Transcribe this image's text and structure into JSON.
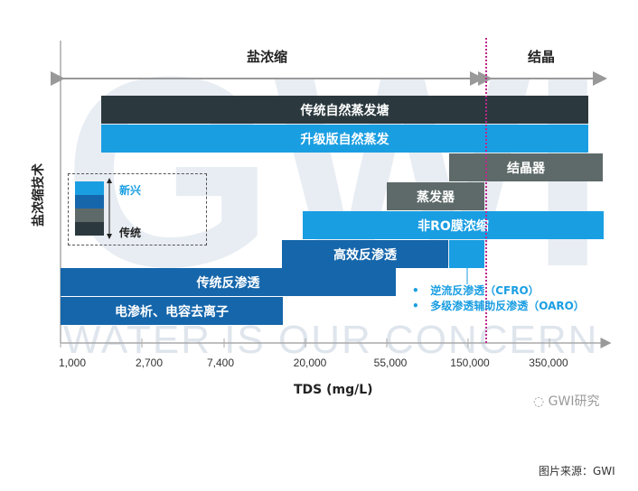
{
  "watermark_logo": "GWI",
  "watermark_text": "WATER IS OUR CONCERN",
  "y_label": "盐浓缩技术",
  "x_label": "TDS (mg/L)",
  "x_ticks": [
    "1,000",
    "2,700",
    "7,400",
    "20,000",
    "55,000",
    "150,000",
    "350,000"
  ],
  "regions": {
    "left": "盐浓缩",
    "right": "结晶"
  },
  "bars": [
    {
      "label": "传统自然蒸发塘",
      "color": "#2b393e"
    },
    {
      "label": "升级版自然蒸发",
      "color": "#1a9ee2"
    },
    {
      "label": "结晶器",
      "color": "#5d6a69"
    },
    {
      "label": "蒸发器",
      "color": "#5d6a69"
    },
    {
      "label": "非RO膜浓缩",
      "color": "#1a9ee2"
    },
    {
      "label": "高效反渗透",
      "color": "#1566ab"
    },
    {
      "label": "传统反渗透",
      "color": "#1566ab"
    },
    {
      "label": "电渗析、电容去离子",
      "color": "#1566ab"
    }
  ],
  "legend": {
    "top": "新兴",
    "bottom": "传统",
    "colors": [
      "#1a9ee2",
      "#1566ab",
      "#5d6a69",
      "#2b393e"
    ]
  },
  "notes": [
    "逆流反渗透（CFRO）",
    "多级渗透辅助反渗透（OARO）"
  ],
  "divider_color": "#c0268a",
  "brand": "GWI研究",
  "source": "图片来源：GWI"
}
